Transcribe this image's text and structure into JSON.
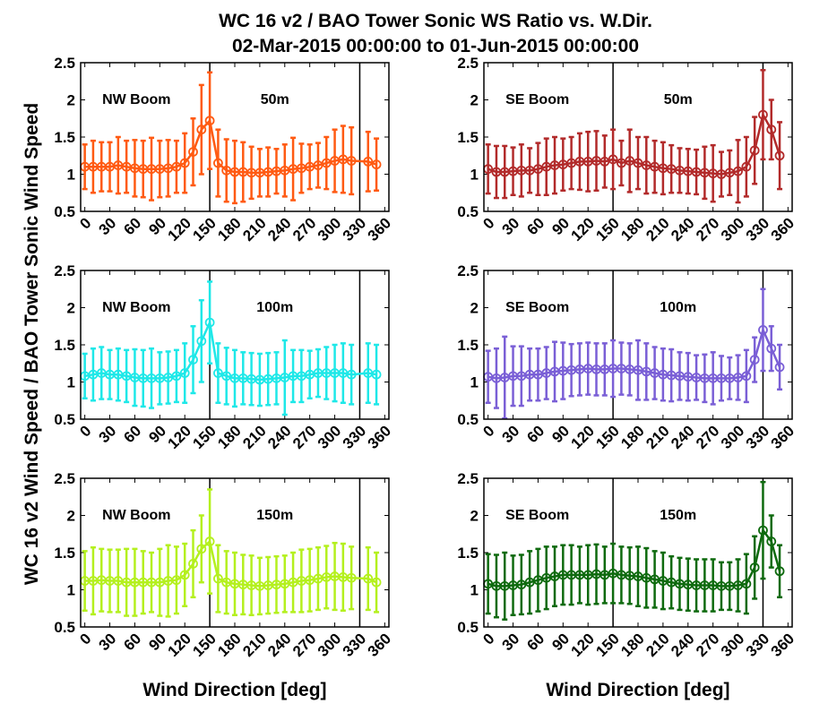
{
  "title_line1": "WC 16 v2 / BAO Tower Sonic WS Ratio vs. W.Dir.",
  "title_line2": "02-Mar-2015 00:00:00 to 01-Jun-2015 00:00:00",
  "ylabel": "WC 16 v2 Wind Speed / BAO Tower Sonic Wind Speed",
  "xlabel": "Wind Direction [deg]",
  "chart_data": [
    {
      "type": "line",
      "boom": "NW Boom",
      "height": "50m",
      "color": "#ff5a12",
      "xlim": [
        -5,
        365
      ],
      "ylim": [
        0.5,
        2.5
      ],
      "vlines": [
        150,
        330
      ],
      "x": [
        0,
        10,
        20,
        30,
        40,
        50,
        60,
        70,
        80,
        90,
        100,
        110,
        120,
        130,
        140,
        150,
        160,
        170,
        180,
        190,
        200,
        210,
        220,
        230,
        240,
        250,
        260,
        270,
        280,
        290,
        300,
        310,
        320,
        340,
        350
      ],
      "y": [
        1.1,
        1.1,
        1.1,
        1.1,
        1.12,
        1.1,
        1.08,
        1.07,
        1.07,
        1.07,
        1.08,
        1.1,
        1.15,
        1.3,
        1.6,
        1.72,
        1.15,
        1.05,
        1.03,
        1.03,
        1.02,
        1.02,
        1.03,
        1.04,
        1.05,
        1.07,
        1.08,
        1.1,
        1.12,
        1.15,
        1.18,
        1.2,
        1.18,
        1.17,
        1.13
      ],
      "err": [
        0.3,
        0.35,
        0.33,
        0.33,
        0.38,
        0.35,
        0.38,
        0.38,
        0.42,
        0.38,
        0.38,
        0.35,
        0.4,
        0.45,
        0.6,
        0.65,
        0.45,
        0.42,
        0.42,
        0.4,
        0.35,
        0.32,
        0.33,
        0.3,
        0.35,
        0.42,
        0.33,
        0.3,
        0.3,
        0.35,
        0.42,
        0.45,
        0.45,
        0.4,
        0.35
      ]
    },
    {
      "type": "line",
      "boom": "SE Boom",
      "height": "50m",
      "color": "#b22a2a",
      "xlim": [
        -5,
        365
      ],
      "ylim": [
        0.5,
        2.5
      ],
      "vlines": [
        150,
        330
      ],
      "x": [
        0,
        10,
        20,
        30,
        40,
        50,
        60,
        70,
        80,
        90,
        100,
        110,
        120,
        130,
        140,
        150,
        160,
        170,
        180,
        190,
        200,
        210,
        220,
        230,
        240,
        250,
        260,
        270,
        280,
        290,
        300,
        310,
        320,
        330,
        340,
        350
      ],
      "y": [
        1.07,
        1.03,
        1.03,
        1.04,
        1.05,
        1.05,
        1.07,
        1.1,
        1.12,
        1.13,
        1.15,
        1.17,
        1.17,
        1.18,
        1.17,
        1.2,
        1.15,
        1.18,
        1.15,
        1.12,
        1.1,
        1.08,
        1.07,
        1.05,
        1.04,
        1.03,
        1.02,
        1.01,
        1.0,
        1.02,
        1.04,
        1.1,
        1.32,
        1.8,
        1.6,
        1.25
      ],
      "err": [
        0.33,
        0.35,
        0.35,
        0.32,
        0.35,
        0.3,
        0.35,
        0.38,
        0.38,
        0.35,
        0.35,
        0.38,
        0.4,
        0.4,
        0.35,
        0.4,
        0.3,
        0.42,
        0.35,
        0.38,
        0.35,
        0.35,
        0.32,
        0.3,
        0.3,
        0.3,
        0.35,
        0.38,
        0.3,
        0.3,
        0.42,
        0.4,
        0.45,
        0.6,
        0.4,
        0.45
      ]
    },
    {
      "type": "line",
      "boom": "NW Boom",
      "height": "100m",
      "color": "#1ee8e8",
      "xlim": [
        -5,
        365
      ],
      "ylim": [
        0.5,
        2.5
      ],
      "vlines": [
        150,
        330
      ],
      "x": [
        0,
        10,
        20,
        30,
        40,
        50,
        60,
        70,
        80,
        90,
        100,
        110,
        120,
        130,
        140,
        150,
        160,
        170,
        180,
        190,
        200,
        210,
        220,
        230,
        240,
        250,
        260,
        270,
        280,
        290,
        300,
        310,
        320,
        340,
        350
      ],
      "y": [
        1.08,
        1.1,
        1.12,
        1.1,
        1.1,
        1.08,
        1.06,
        1.05,
        1.05,
        1.05,
        1.06,
        1.08,
        1.12,
        1.3,
        1.55,
        1.8,
        1.12,
        1.08,
        1.05,
        1.05,
        1.04,
        1.03,
        1.04,
        1.05,
        1.06,
        1.08,
        1.08,
        1.1,
        1.12,
        1.12,
        1.12,
        1.12,
        1.1,
        1.12,
        1.1
      ],
      "err": [
        0.3,
        0.35,
        0.35,
        0.33,
        0.35,
        0.35,
        0.38,
        0.38,
        0.4,
        0.35,
        0.35,
        0.35,
        0.4,
        0.45,
        0.55,
        0.55,
        0.4,
        0.38,
        0.38,
        0.35,
        0.35,
        0.35,
        0.35,
        0.35,
        0.5,
        0.35,
        0.35,
        0.32,
        0.32,
        0.35,
        0.38,
        0.4,
        0.4,
        0.4,
        0.4
      ]
    },
    {
      "type": "line",
      "boom": "SE Boom",
      "height": "100m",
      "color": "#7a5fd6",
      "xlim": [
        -5,
        365
      ],
      "ylim": [
        0.5,
        2.5
      ],
      "vlines": [
        150,
        330
      ],
      "x": [
        0,
        10,
        20,
        30,
        40,
        50,
        60,
        70,
        80,
        90,
        100,
        110,
        120,
        130,
        140,
        150,
        160,
        170,
        180,
        190,
        200,
        210,
        220,
        230,
        240,
        250,
        260,
        270,
        280,
        290,
        300,
        310,
        320,
        330,
        340,
        350
      ],
      "y": [
        1.07,
        1.05,
        1.06,
        1.08,
        1.08,
        1.1,
        1.1,
        1.12,
        1.14,
        1.15,
        1.16,
        1.17,
        1.18,
        1.17,
        1.17,
        1.18,
        1.18,
        1.17,
        1.16,
        1.14,
        1.12,
        1.1,
        1.09,
        1.08,
        1.07,
        1.06,
        1.05,
        1.05,
        1.05,
        1.05,
        1.06,
        1.08,
        1.3,
        1.7,
        1.45,
        1.2
      ],
      "err": [
        0.35,
        0.4,
        0.55,
        0.4,
        0.4,
        0.35,
        0.35,
        0.35,
        0.4,
        0.38,
        0.35,
        0.35,
        0.35,
        0.35,
        0.35,
        0.38,
        0.35,
        0.35,
        0.4,
        0.38,
        0.35,
        0.35,
        0.35,
        0.32,
        0.32,
        0.3,
        0.32,
        0.35,
        0.3,
        0.28,
        0.3,
        0.35,
        0.3,
        0.55,
        0.3,
        0.3
      ]
    },
    {
      "type": "line",
      "boom": "NW Boom",
      "height": "150m",
      "color": "#b4f01e",
      "xlim": [
        -5,
        365
      ],
      "ylim": [
        0.5,
        2.5
      ],
      "vlines": [
        150,
        330
      ],
      "x": [
        0,
        10,
        20,
        30,
        40,
        50,
        60,
        70,
        80,
        90,
        100,
        110,
        120,
        130,
        140,
        150,
        160,
        170,
        180,
        190,
        200,
        210,
        220,
        230,
        240,
        250,
        260,
        270,
        280,
        290,
        300,
        310,
        320,
        340,
        350
      ],
      "y": [
        1.12,
        1.12,
        1.13,
        1.12,
        1.12,
        1.1,
        1.1,
        1.1,
        1.1,
        1.1,
        1.12,
        1.13,
        1.2,
        1.35,
        1.55,
        1.65,
        1.15,
        1.1,
        1.08,
        1.07,
        1.06,
        1.05,
        1.06,
        1.07,
        1.08,
        1.1,
        1.12,
        1.13,
        1.15,
        1.17,
        1.18,
        1.17,
        1.16,
        1.15,
        1.1
      ],
      "err": [
        0.4,
        0.45,
        0.42,
        0.42,
        0.42,
        0.45,
        0.45,
        0.42,
        0.4,
        0.45,
        0.48,
        0.45,
        0.42,
        0.45,
        0.45,
        0.7,
        0.45,
        0.42,
        0.42,
        0.4,
        0.4,
        0.38,
        0.38,
        0.38,
        0.38,
        0.4,
        0.42,
        0.42,
        0.42,
        0.42,
        0.45,
        0.45,
        0.42,
        0.42,
        0.4
      ]
    },
    {
      "type": "line",
      "boom": "SE Boom",
      "height": "150m",
      "color": "#0e6a0e",
      "xlim": [
        -5,
        365
      ],
      "ylim": [
        0.5,
        2.5
      ],
      "vlines": [
        150,
        330
      ],
      "x": [
        0,
        10,
        20,
        30,
        40,
        50,
        60,
        70,
        80,
        90,
        100,
        110,
        120,
        130,
        140,
        150,
        160,
        170,
        180,
        190,
        200,
        210,
        220,
        230,
        240,
        250,
        260,
        270,
        280,
        290,
        300,
        310,
        320,
        330,
        340,
        350
      ],
      "y": [
        1.08,
        1.05,
        1.05,
        1.06,
        1.07,
        1.1,
        1.13,
        1.16,
        1.18,
        1.2,
        1.2,
        1.2,
        1.2,
        1.21,
        1.2,
        1.22,
        1.2,
        1.19,
        1.18,
        1.16,
        1.14,
        1.12,
        1.1,
        1.08,
        1.07,
        1.06,
        1.06,
        1.06,
        1.05,
        1.05,
        1.06,
        1.08,
        1.3,
        1.8,
        1.65,
        1.25
      ],
      "err": [
        0.4,
        0.42,
        0.45,
        0.4,
        0.4,
        0.42,
        0.42,
        0.42,
        0.4,
        0.4,
        0.4,
        0.38,
        0.4,
        0.4,
        0.38,
        0.4,
        0.38,
        0.38,
        0.4,
        0.4,
        0.38,
        0.38,
        0.35,
        0.35,
        0.35,
        0.35,
        0.35,
        0.35,
        0.32,
        0.32,
        0.35,
        0.4,
        0.42,
        0.65,
        0.35,
        0.35
      ]
    }
  ],
  "yticks": [
    "0.5",
    "1",
    "1.5",
    "2",
    "2.5"
  ],
  "xticks": [
    "0",
    "30",
    "60",
    "90",
    "120",
    "150",
    "180",
    "210",
    "240",
    "270",
    "300",
    "330",
    "360"
  ]
}
